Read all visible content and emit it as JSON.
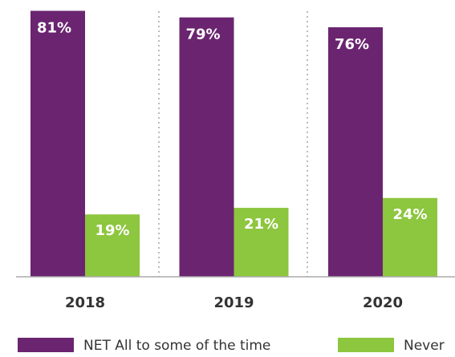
{
  "chart_data": {
    "type": "bar",
    "categories": [
      "2018",
      "2019",
      "2020"
    ],
    "series": [
      {
        "name": "NET All to some of the time",
        "color": "#6b2570",
        "values": [
          81,
          79,
          76
        ],
        "value_labels": [
          "81%",
          "79%",
          "76%"
        ]
      },
      {
        "name": "Never",
        "color": "#8dc63f",
        "values": [
          19,
          21,
          24
        ],
        "value_labels": [
          "19%",
          "21%",
          "24%"
        ]
      }
    ],
    "ylim": [
      0,
      84.3
    ]
  }
}
